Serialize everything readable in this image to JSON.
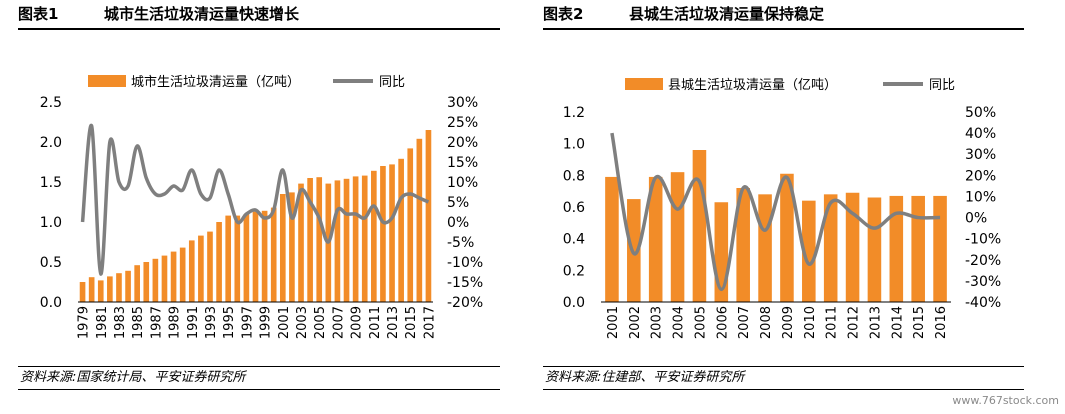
{
  "watermark": "www.767stock.com",
  "colors": {
    "bar": "#f28c28",
    "line": "#7f7f7f"
  },
  "chart_data": [
    {
      "type": "bar",
      "figure_label": "图表1",
      "title": "城市生活垃圾清运量快速增长",
      "source": "资料来源:国家统计局、平安证券研究所",
      "legend": [
        "城市生活垃圾清运量（亿吨）",
        "同比"
      ],
      "legend_placement": "top",
      "x": [
        1979,
        1980,
        1981,
        1982,
        1983,
        1984,
        1985,
        1986,
        1987,
        1988,
        1989,
        1990,
        1991,
        1992,
        1993,
        1994,
        1995,
        1996,
        1997,
        1998,
        1999,
        2000,
        2001,
        2002,
        2003,
        2004,
        2005,
        2006,
        2007,
        2008,
        2009,
        2010,
        2011,
        2012,
        2013,
        2014,
        2015,
        2016,
        2017
      ],
      "x_ticks": [
        "1979",
        "1981",
        "1983",
        "1985",
        "1987",
        "1989",
        "1991",
        "1993",
        "1995",
        "1997",
        "1999",
        "2001",
        "2003",
        "2005",
        "2007",
        "2009",
        "2011",
        "2013",
        "2015",
        "2017"
      ],
      "series": [
        {
          "name": "城市生活垃圾清运量（亿吨）",
          "type": "bar",
          "axis": "left",
          "values": [
            0.25,
            0.31,
            0.27,
            0.32,
            0.36,
            0.39,
            0.46,
            0.5,
            0.54,
            0.58,
            0.63,
            0.68,
            0.77,
            0.83,
            0.88,
            1.0,
            1.08,
            1.08,
            1.1,
            1.13,
            1.14,
            1.18,
            1.35,
            1.37,
            1.48,
            1.55,
            1.56,
            1.48,
            1.52,
            1.54,
            1.57,
            1.58,
            1.64,
            1.7,
            1.72,
            1.79,
            1.92,
            2.04,
            2.15
          ]
        },
        {
          "name": "同比",
          "type": "line",
          "axis": "right",
          "values": [
            0.0,
            24.0,
            -13.0,
            20.0,
            10.0,
            9.0,
            19.0,
            11.0,
            7.0,
            7.0,
            9.0,
            8.0,
            13.0,
            7.0,
            6.0,
            13.0,
            7.0,
            0.0,
            2.0,
            3.0,
            1.0,
            3.0,
            13.0,
            1.0,
            8.0,
            5.0,
            1.0,
            -5.0,
            3.0,
            2.0,
            2.0,
            1.0,
            4.0,
            0.0,
            1.0,
            6.0,
            7.0,
            6.0,
            5.0
          ]
        }
      ],
      "ylim_left": [
        0,
        2.5
      ],
      "yticks_left": [
        "0.0",
        "0.5",
        "1.0",
        "1.5",
        "2.0",
        "2.5"
      ],
      "ylim_right": [
        -20,
        30
      ],
      "yticks_right": [
        "-20%",
        "-15%",
        "-10%",
        "-5%",
        "0%",
        "5%",
        "10%",
        "15%",
        "20%",
        "25%",
        "30%"
      ]
    },
    {
      "type": "bar",
      "figure_label": "图表2",
      "title": "县城生活垃圾清运量保持稳定",
      "source": "资料来源:住建部、平安证券研究所",
      "legend": [
        "县城生活垃圾清运量（亿吨）",
        "同比"
      ],
      "legend_placement": "top",
      "x": [
        2001,
        2002,
        2003,
        2004,
        2005,
        2006,
        2007,
        2008,
        2009,
        2010,
        2011,
        2012,
        2013,
        2014,
        2015,
        2016
      ],
      "x_ticks": [
        "2001",
        "2002",
        "2003",
        "2004",
        "2005",
        "2006",
        "2007",
        "2008",
        "2009",
        "2010",
        "2011",
        "2012",
        "2013",
        "2014",
        "2015",
        "2016"
      ],
      "series": [
        {
          "name": "县城生活垃圾清运量（亿吨）",
          "type": "bar",
          "axis": "left",
          "values": [
            0.79,
            0.65,
            0.79,
            0.82,
            0.96,
            0.63,
            0.72,
            0.68,
            0.81,
            0.64,
            0.68,
            0.69,
            0.66,
            0.67,
            0.67,
            0.67
          ]
        },
        {
          "name": "同比",
          "type": "line",
          "axis": "right",
          "values": [
            40.0,
            -17.0,
            19.0,
            4.0,
            17.0,
            -34.0,
            14.0,
            -6.0,
            19.0,
            -22.0,
            7.0,
            2.0,
            -5.0,
            2.0,
            0.0,
            0.0
          ]
        }
      ],
      "ylim_left": [
        0,
        1.2
      ],
      "yticks_left": [
        "0.0",
        "0.2",
        "0.4",
        "0.6",
        "0.8",
        "1.0",
        "1.2"
      ],
      "ylim_right": [
        -40,
        50
      ],
      "yticks_right": [
        "-40%",
        "-30%",
        "-20%",
        "-10%",
        "0%",
        "10%",
        "20%",
        "30%",
        "40%",
        "50%"
      ]
    }
  ]
}
